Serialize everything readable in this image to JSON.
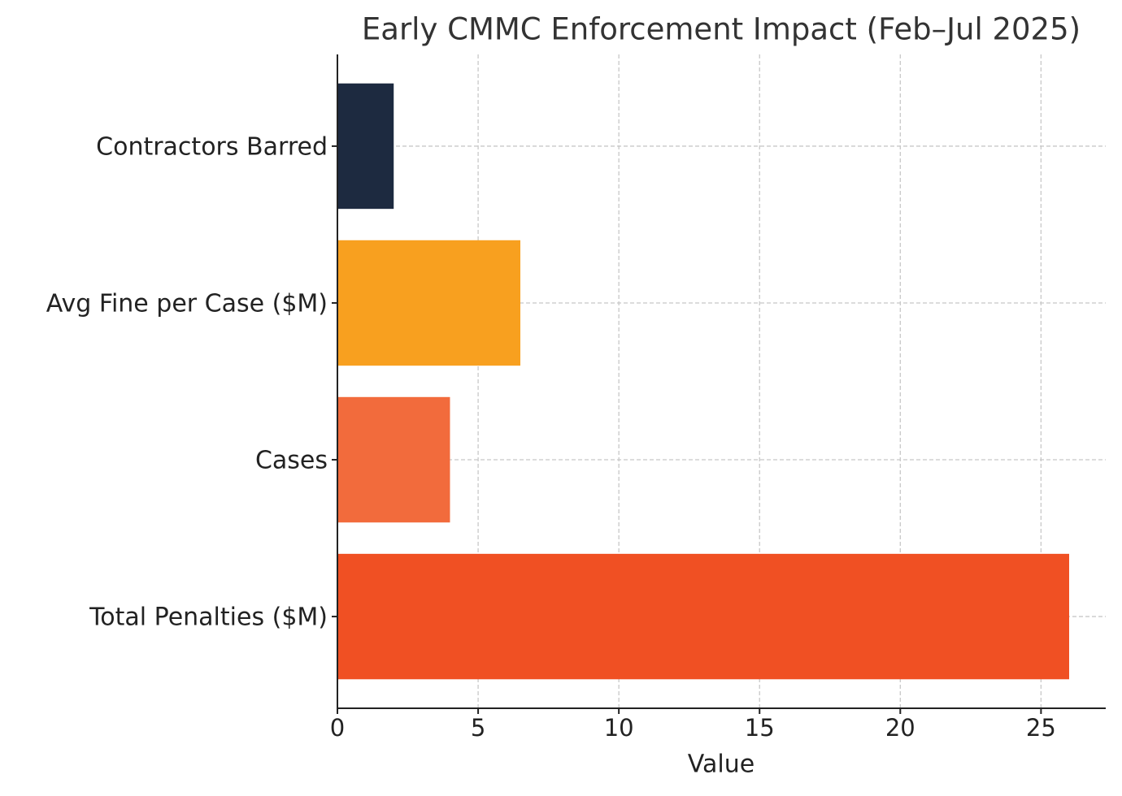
{
  "chart_data": {
    "type": "barh",
    "title": "Early CMMC Enforcement Impact (Feb–Jul 2025)",
    "xlabel": "Value",
    "categories": [
      "Total Penalties ($M)",
      "Cases",
      "Avg Fine per Case ($M)",
      "Contractors Barred"
    ],
    "values": [
      26,
      4,
      6.5,
      2
    ],
    "colors": [
      "#f05023",
      "#f26b3c",
      "#f8a01f",
      "#1d2a40"
    ],
    "xlim": [
      0,
      27.3
    ],
    "xticks": [
      0,
      5,
      10,
      15,
      20,
      25
    ],
    "grid": true
  }
}
